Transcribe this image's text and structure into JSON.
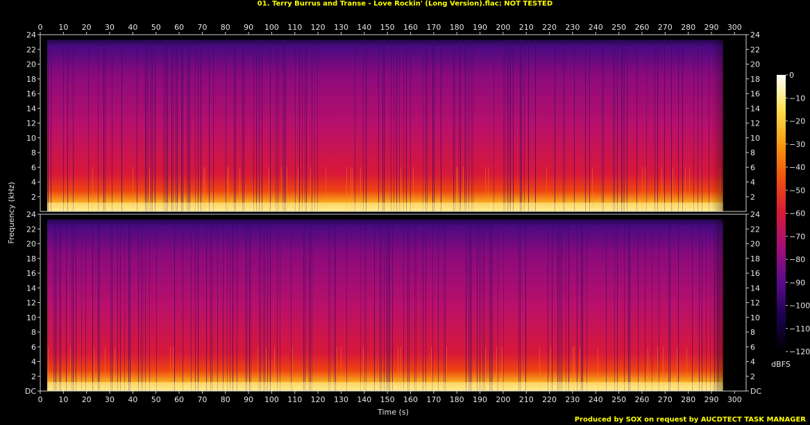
{
  "header": {
    "title": "01. Terry Burrus and Transe - Love Rockin' (Long Version).flac: NOT TESTED"
  },
  "footer": {
    "credit": "Produced by SOX on request by AUCDTECT TASK MANAGER"
  },
  "colors": {
    "title": "#ffff00",
    "footer": "#ffff00",
    "background": "#000000",
    "text": "#e6e6e6"
  },
  "chart_data": {
    "type": "heatmap",
    "xlabel": "Time (s)",
    "ylabel": "Frequency (kHz)",
    "xlim": [
      0,
      305
    ],
    "ylim": [
      0,
      24
    ],
    "x_ticks": [
      0,
      10,
      20,
      30,
      40,
      50,
      60,
      70,
      80,
      90,
      100,
      110,
      120,
      130,
      140,
      150,
      160,
      170,
      180,
      190,
      200,
      210,
      220,
      230,
      240,
      250,
      260,
      270,
      280,
      290,
      300
    ],
    "y_ticks": [
      {
        "value": 0,
        "label": "DC"
      },
      {
        "value": 2,
        "label": "2"
      },
      {
        "value": 4,
        "label": "4"
      },
      {
        "value": 6,
        "label": "6"
      },
      {
        "value": 8,
        "label": "8"
      },
      {
        "value": 10,
        "label": "10"
      },
      {
        "value": 12,
        "label": "12"
      },
      {
        "value": 14,
        "label": "14"
      },
      {
        "value": 16,
        "label": "16"
      },
      {
        "value": 18,
        "label": "18"
      },
      {
        "value": 20,
        "label": "20"
      },
      {
        "value": 22,
        "label": "22"
      },
      {
        "value": 24,
        "label": "24"
      }
    ],
    "channels": [
      "Channel 1",
      "Channel 2"
    ],
    "content_end_time": 295,
    "colorbar": {
      "label": "dBFS",
      "range": [
        -120,
        0
      ],
      "ticks": [
        0,
        -10,
        -20,
        -30,
        -40,
        -50,
        -60,
        -70,
        -80,
        -90,
        -100,
        -110,
        -120
      ],
      "colors": [
        "#000000",
        "#1a0050",
        "#5a0a8c",
        "#a0107a",
        "#d81838",
        "#f05010",
        "#f89a10",
        "#ffe050",
        "#ffffff"
      ]
    }
  }
}
